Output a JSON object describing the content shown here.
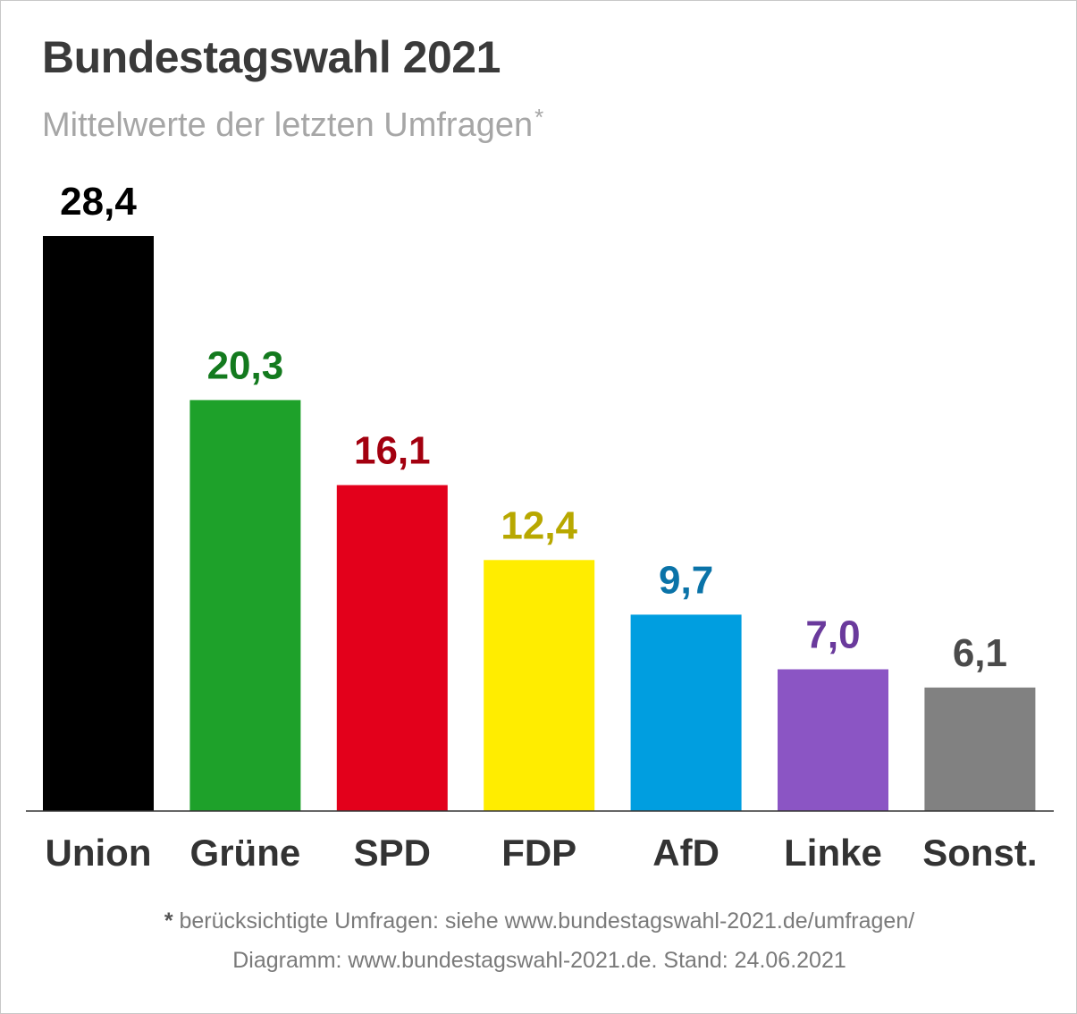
{
  "chart_data": {
    "type": "bar",
    "title": "Bundestagswahl 2021",
    "subtitle": "Mittelwerte der letzten Umfragen",
    "subtitle_marker": "*",
    "categories": [
      "Union",
      "Grüne",
      "SPD",
      "FDP",
      "AfD",
      "Linke",
      "Sonst."
    ],
    "values": [
      28.4,
      20.3,
      16.1,
      12.4,
      9.7,
      7.0,
      6.1
    ],
    "value_labels": [
      "28,4",
      "20,3",
      "16,1",
      "12,4",
      "9,7",
      "7,0",
      "6,1"
    ],
    "bar_colors": [
      "#000000",
      "#1ea12a",
      "#e3001b",
      "#ffed00",
      "#009ee0",
      "#8b55c4",
      "#818181"
    ],
    "label_colors": [
      "#000000",
      "#137a1e",
      "#a3000f",
      "#b8a800",
      "#0a73a8",
      "#6a3a9c",
      "#4a4a4a"
    ],
    "xlabel": "",
    "ylabel": "",
    "ylim": [
      0,
      28.4
    ],
    "grid": false,
    "legend": "none"
  },
  "footer": {
    "marker": "*",
    "line1": "berücksichtigte Umfragen: siehe www.bundestagswahl-2021.de/umfragen/",
    "line2": "Diagramm: www.bundestagswahl-2021.de. Stand: 24.06.2021"
  },
  "colors": {
    "title": "#3a3a3a",
    "subtitle": "#a6a6a6",
    "category_label": "#333333",
    "baseline": "#333333",
    "footer": "#7a7a7a"
  }
}
